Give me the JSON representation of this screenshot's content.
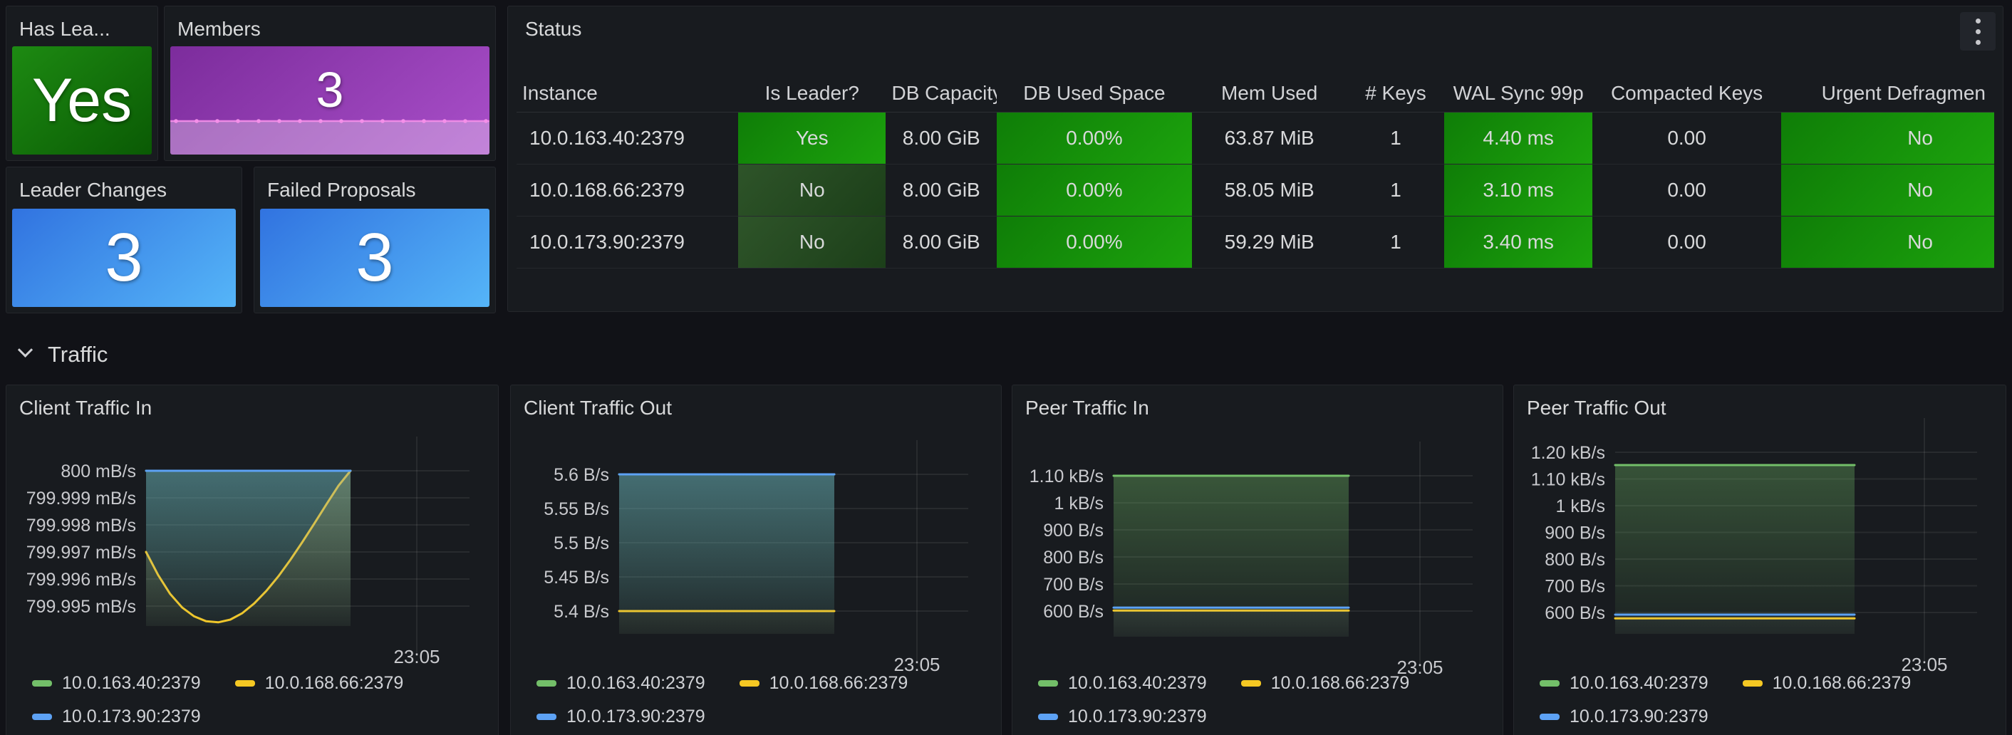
{
  "stat_panels": [
    {
      "title": "Has Lea...",
      "value": "Yes",
      "color": "green"
    },
    {
      "title": "Members",
      "value": "3",
      "color": "purple",
      "has_sparkline": true
    },
    {
      "title": "Leader Changes",
      "value": "3",
      "color": "blue"
    },
    {
      "title": "Failed Proposals",
      "value": "3",
      "color": "blue"
    }
  ],
  "status_table": {
    "title": "Status",
    "columns": [
      "Instance",
      "Is Leader?",
      "DB Capacity",
      "DB Used Space",
      "Mem Used",
      "# Keys",
      "WAL Sync 99p",
      "Compacted Keys",
      "Urgent Defragmen"
    ],
    "rows": [
      [
        "10.0.163.40:2379",
        "Yes",
        "8.00 GiB",
        "0.00%",
        "63.87 MiB",
        "1",
        "4.40 ms",
        "0.00",
        "No"
      ],
      [
        "10.0.168.66:2379",
        "No",
        "8.00 GiB",
        "0.00%",
        "58.05 MiB",
        "1",
        "3.10 ms",
        "0.00",
        "No"
      ],
      [
        "10.0.173.90:2379",
        "No",
        "8.00 GiB",
        "0.00%",
        "59.29 MiB",
        "1",
        "3.40 ms",
        "0.00",
        "No"
      ]
    ]
  },
  "section": {
    "label": "Traffic"
  },
  "colors": {
    "series_green": "#73bf69",
    "series_yellow": "#f5c823",
    "series_blue": "#5da2f4",
    "stat_green": "#15790c",
    "stat_blue": "#3e8ee9",
    "stat_purple": "#933bb5",
    "cell_green": "#169b0c",
    "cell_dark_green": "#27491f",
    "sparkline_pink": "#f48fe9"
  },
  "chart_data": [
    {
      "type": "area",
      "title": "Client Traffic In",
      "x_tick": "23:05",
      "ylabel": "",
      "y_ticks": {
        "labels": [
          "800 mB/s",
          "799.999 mB/s",
          "799.998 mB/s",
          "799.997 mB/s",
          "799.996 mB/s",
          "799.995 mB/s"
        ],
        "values": [
          800,
          799.999,
          799.998,
          799.997,
          799.996,
          799.995
        ]
      },
      "series": [
        {
          "name": "10.0.163.40:2379",
          "color": "green",
          "values": [
            800,
            800
          ]
        },
        {
          "name": "10.0.168.66:2379",
          "color": "yellow",
          "values": [
            799.997,
            799.99615,
            799.99545,
            799.99495,
            799.99462,
            799.99444,
            799.9944,
            799.9945,
            799.99474,
            799.9951,
            799.99556,
            799.9961,
            799.99671,
            799.99737,
            799.99806,
            799.99876,
            799.99945,
            800
          ]
        },
        {
          "name": "10.0.173.90:2379",
          "color": "blue",
          "values": [
            800,
            800
          ]
        }
      ]
    },
    {
      "type": "area",
      "title": "Client Traffic Out",
      "x_tick": "23:05",
      "ylabel": "",
      "y_ticks": {
        "labels": [
          "5.6 B/s",
          "5.55 B/s",
          "5.5 B/s",
          "5.45 B/s",
          "5.4 B/s"
        ],
        "values": [
          5.6,
          5.55,
          5.5,
          5.45,
          5.4
        ]
      },
      "series": [
        {
          "name": "10.0.163.40:2379",
          "color": "green",
          "values": [
            5.6,
            5.6
          ]
        },
        {
          "name": "10.0.168.66:2379",
          "color": "yellow",
          "values": [
            5.4,
            5.4
          ]
        },
        {
          "name": "10.0.173.90:2379",
          "color": "blue",
          "values": [
            5.6,
            5.6
          ]
        }
      ]
    },
    {
      "type": "area",
      "title": "Peer Traffic In",
      "x_tick": "23:05",
      "ylabel": "",
      "y_ticks": {
        "labels": [
          "1.10 kB/s",
          "1 kB/s",
          "900 B/s",
          "800 B/s",
          "700 B/s",
          "600 B/s"
        ],
        "values": [
          1100,
          1000,
          900,
          800,
          700,
          600
        ]
      },
      "series": [
        {
          "name": "10.0.163.40:2379",
          "color": "green",
          "values": [
            1100,
            1100
          ]
        },
        {
          "name": "10.0.168.66:2379",
          "color": "yellow",
          "values": [
            602,
            602
          ]
        },
        {
          "name": "10.0.173.90:2379",
          "color": "blue",
          "values": [
            613,
            613
          ]
        }
      ]
    },
    {
      "type": "area",
      "title": "Peer Traffic Out",
      "x_tick": "23:05",
      "ylabel": "",
      "y_ticks": {
        "labels": [
          "1.20 kB/s",
          "1.10 kB/s",
          "1 kB/s",
          "900 B/s",
          "800 B/s",
          "700 B/s",
          "600 B/s"
        ],
        "values": [
          1200,
          1100,
          1000,
          900,
          800,
          700,
          600
        ]
      },
      "series": [
        {
          "name": "10.0.163.40:2379",
          "color": "green",
          "values": [
            1152,
            1152
          ]
        },
        {
          "name": "10.0.168.66:2379",
          "color": "yellow",
          "values": [
            578,
            578
          ]
        },
        {
          "name": "10.0.173.90:2379",
          "color": "blue",
          "values": [
            592,
            592
          ]
        }
      ]
    }
  ]
}
